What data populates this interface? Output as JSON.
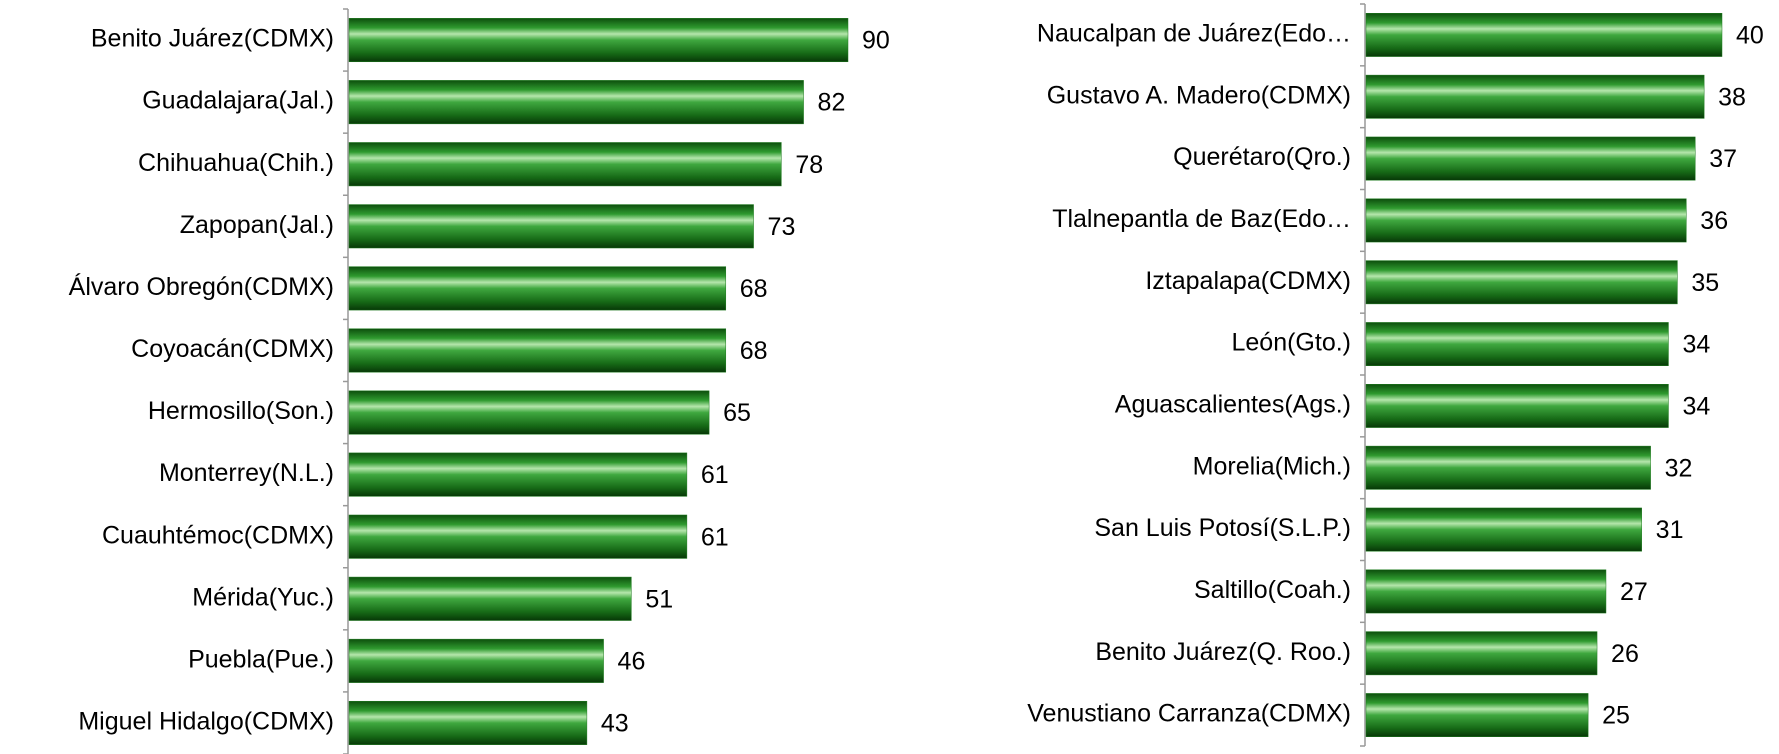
{
  "chart_data": [
    {
      "type": "bar",
      "orientation": "horizontal",
      "color": "#1e7b1e",
      "categories": [
        "Benito Juárez(CDMX)",
        "Guadalajara(Jal.)",
        "Chihuahua(Chih.)",
        "Zapopan(Jal.)",
        "Álvaro Obregón(CDMX)",
        "Coyoacán(CDMX)",
        "Hermosillo(Son.)",
        "Monterrey(N.L.)",
        "Cuauhtémoc(CDMX)",
        "Mérida(Yuc.)",
        "Puebla(Pue.)",
        "Miguel Hidalgo(CDMX)"
      ],
      "values": [
        90,
        82,
        78,
        73,
        68,
        68,
        65,
        61,
        61,
        51,
        46,
        43
      ]
    },
    {
      "type": "bar",
      "orientation": "horizontal",
      "color": "#1e7b1e",
      "categories": [
        "Naucalpan de Juárez(Edo…",
        "Gustavo A. Madero(CDMX)",
        "Querétaro(Qro.)",
        "Tlalnepantla de Baz(Edo…",
        "Iztapalapa(CDMX)",
        "León(Gto.)",
        "Aguascalientes(Ags.)",
        "Morelia(Mich.)",
        "San Luis Potosí(S.L.P.)",
        "Saltillo(Coah.)",
        "Benito Juárez(Q. Roo.)",
        "Venustiano Carranza(CDMX)"
      ],
      "values": [
        40,
        38,
        37,
        36,
        35,
        34,
        34,
        32,
        31,
        27,
        26,
        25
      ]
    }
  ]
}
